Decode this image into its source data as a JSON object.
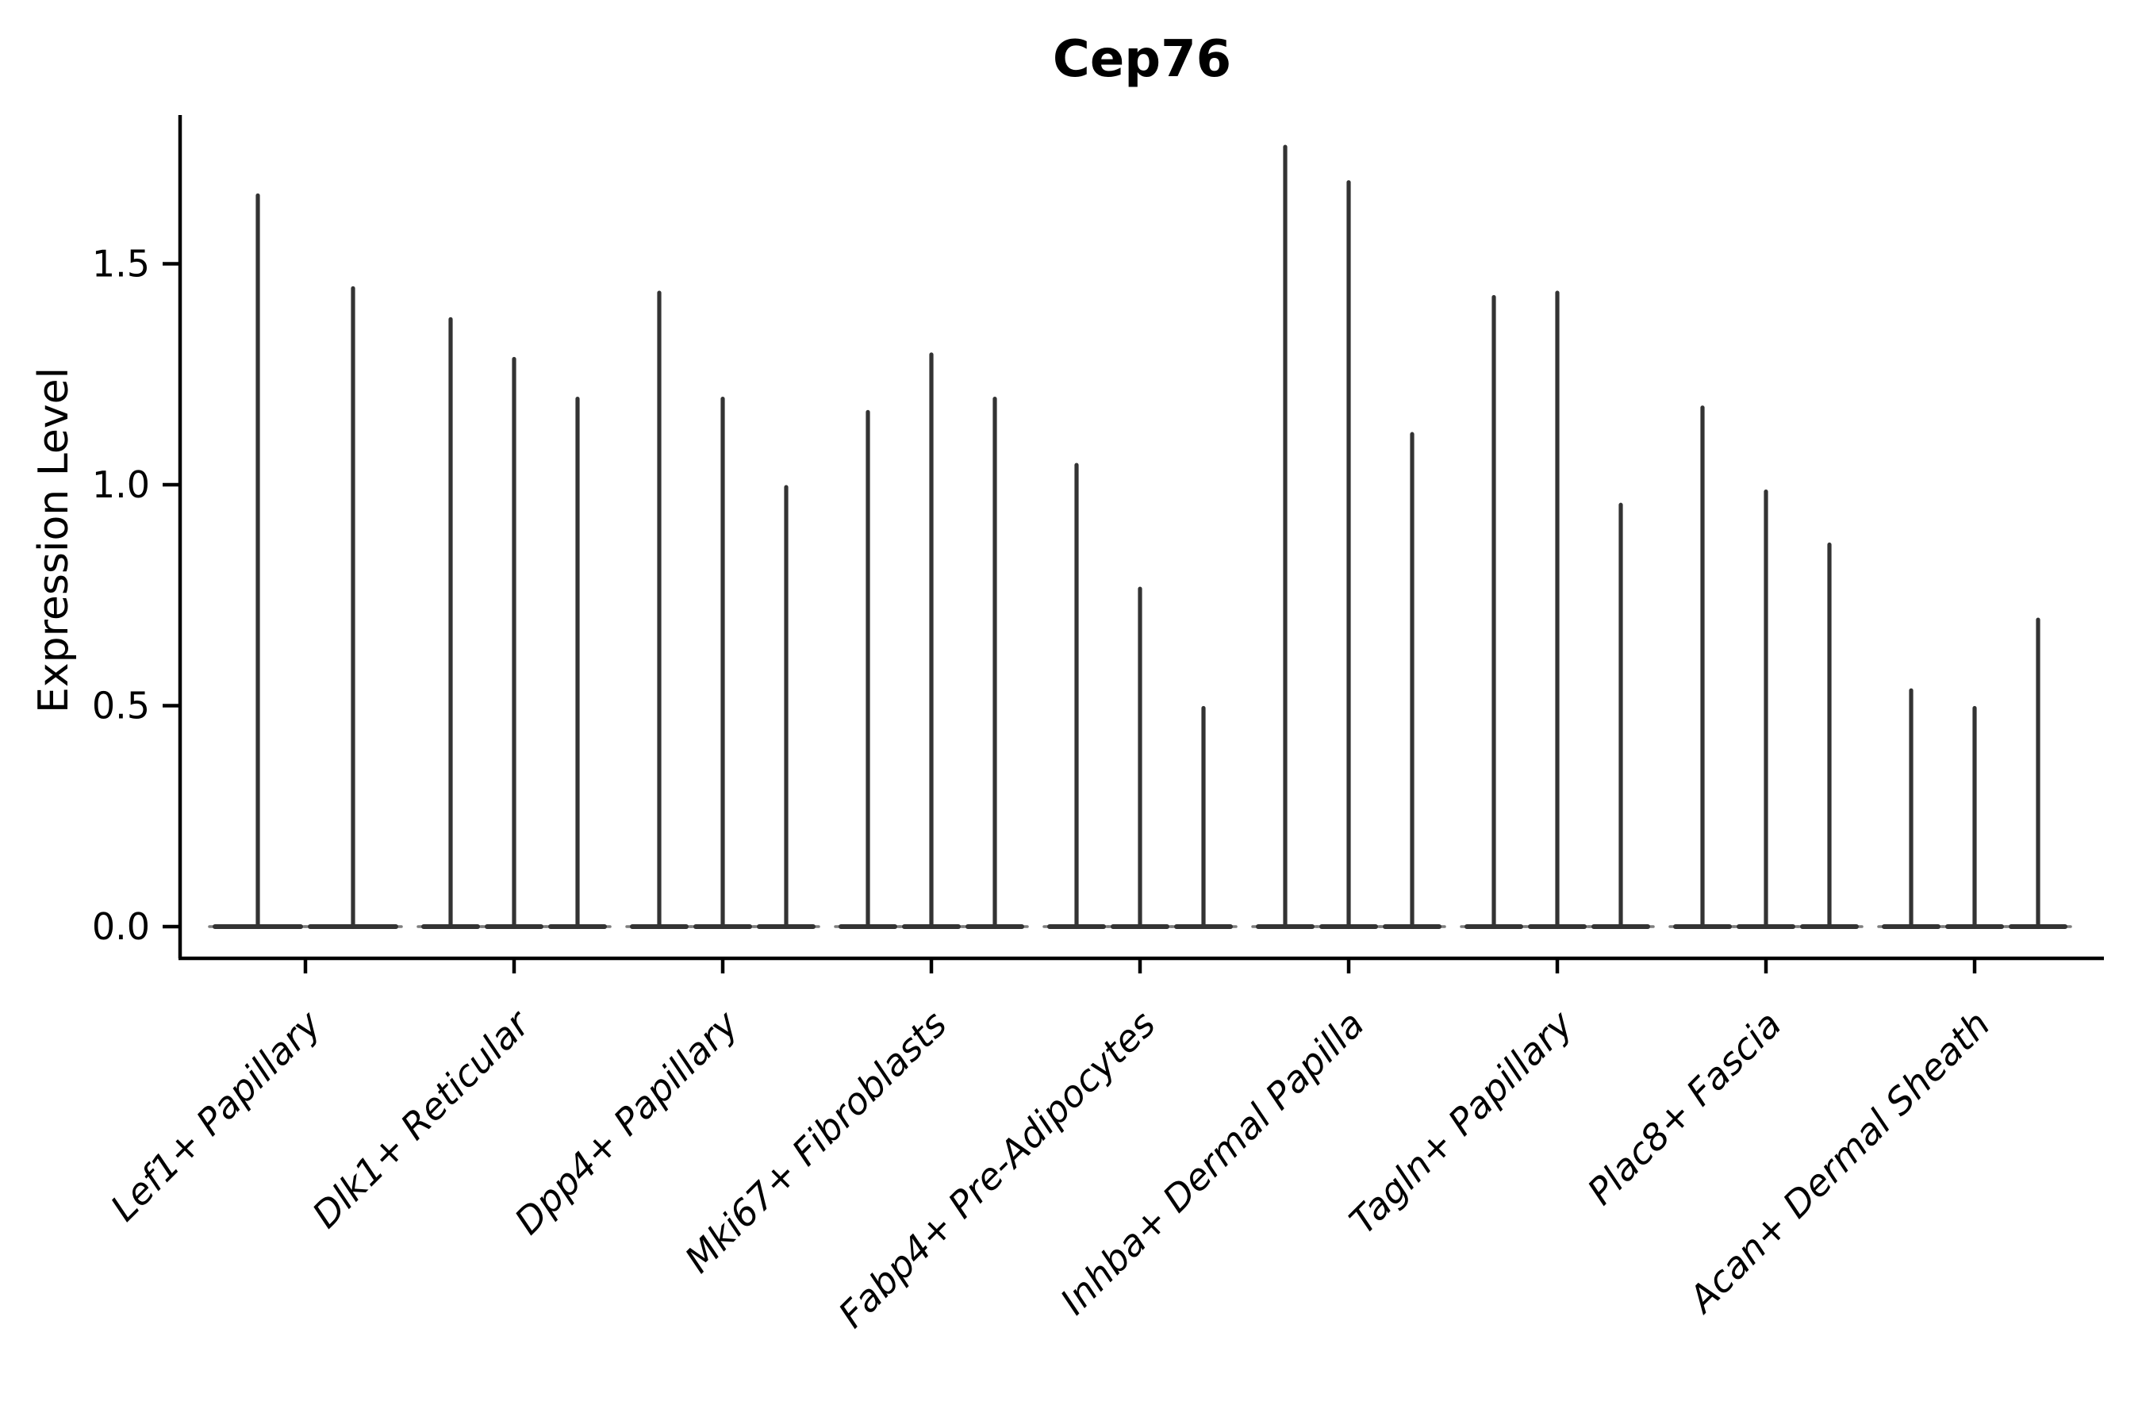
{
  "chart_data": {
    "type": "violin",
    "title": "Cep76",
    "xlabel": "",
    "ylabel": "Expression Level",
    "ylim": [
      0,
      1.85
    ],
    "grid": false,
    "legend": "none",
    "yticks": [
      {
        "value": 0.0,
        "label": "0.0"
      },
      {
        "value": 0.5,
        "label": "0.5"
      },
      {
        "value": 1.0,
        "label": "1.0"
      },
      {
        "value": 1.5,
        "label": "1.5"
      }
    ],
    "description": "Violin plot of expression; each category holds 2-3 very thin spike-like violins whose bulk sits at 0 with a narrow tail up to the max value",
    "groups": [
      {
        "label": "Lef1+ Papillary",
        "violin_max_values": [
          1.66,
          1.45
        ]
      },
      {
        "label": "Dlk1+ Reticular",
        "violin_max_values": [
          1.38,
          1.29,
          1.2
        ]
      },
      {
        "label": "Dpp4+ Papillary",
        "violin_max_values": [
          1.44,
          1.2,
          1.0
        ]
      },
      {
        "label": "Mki67+ Fibroblasts",
        "violin_max_values": [
          1.17,
          1.3,
          1.2
        ]
      },
      {
        "label": "Fabp4+ Pre-Adipocytes",
        "violin_max_values": [
          1.05,
          0.77,
          0.5
        ]
      },
      {
        "label": "Inhba+ Dermal Papilla",
        "violin_max_values": [
          1.77,
          1.69,
          1.12
        ]
      },
      {
        "label": "Tagln+ Papillary",
        "violin_max_values": [
          1.43,
          1.44,
          0.96
        ]
      },
      {
        "label": "Plac8+ Fascia",
        "violin_max_values": [
          1.18,
          0.99,
          0.87
        ]
      },
      {
        "label": "Acan+ Dermal Sheath",
        "violin_max_values": [
          0.54,
          0.5,
          0.7
        ]
      }
    ]
  },
  "colors": {
    "violin": "#333333",
    "violin_base_tip": "#7d7d7d",
    "spine": "#000000",
    "tick_label": "#000000",
    "background": "#ffffff"
  }
}
